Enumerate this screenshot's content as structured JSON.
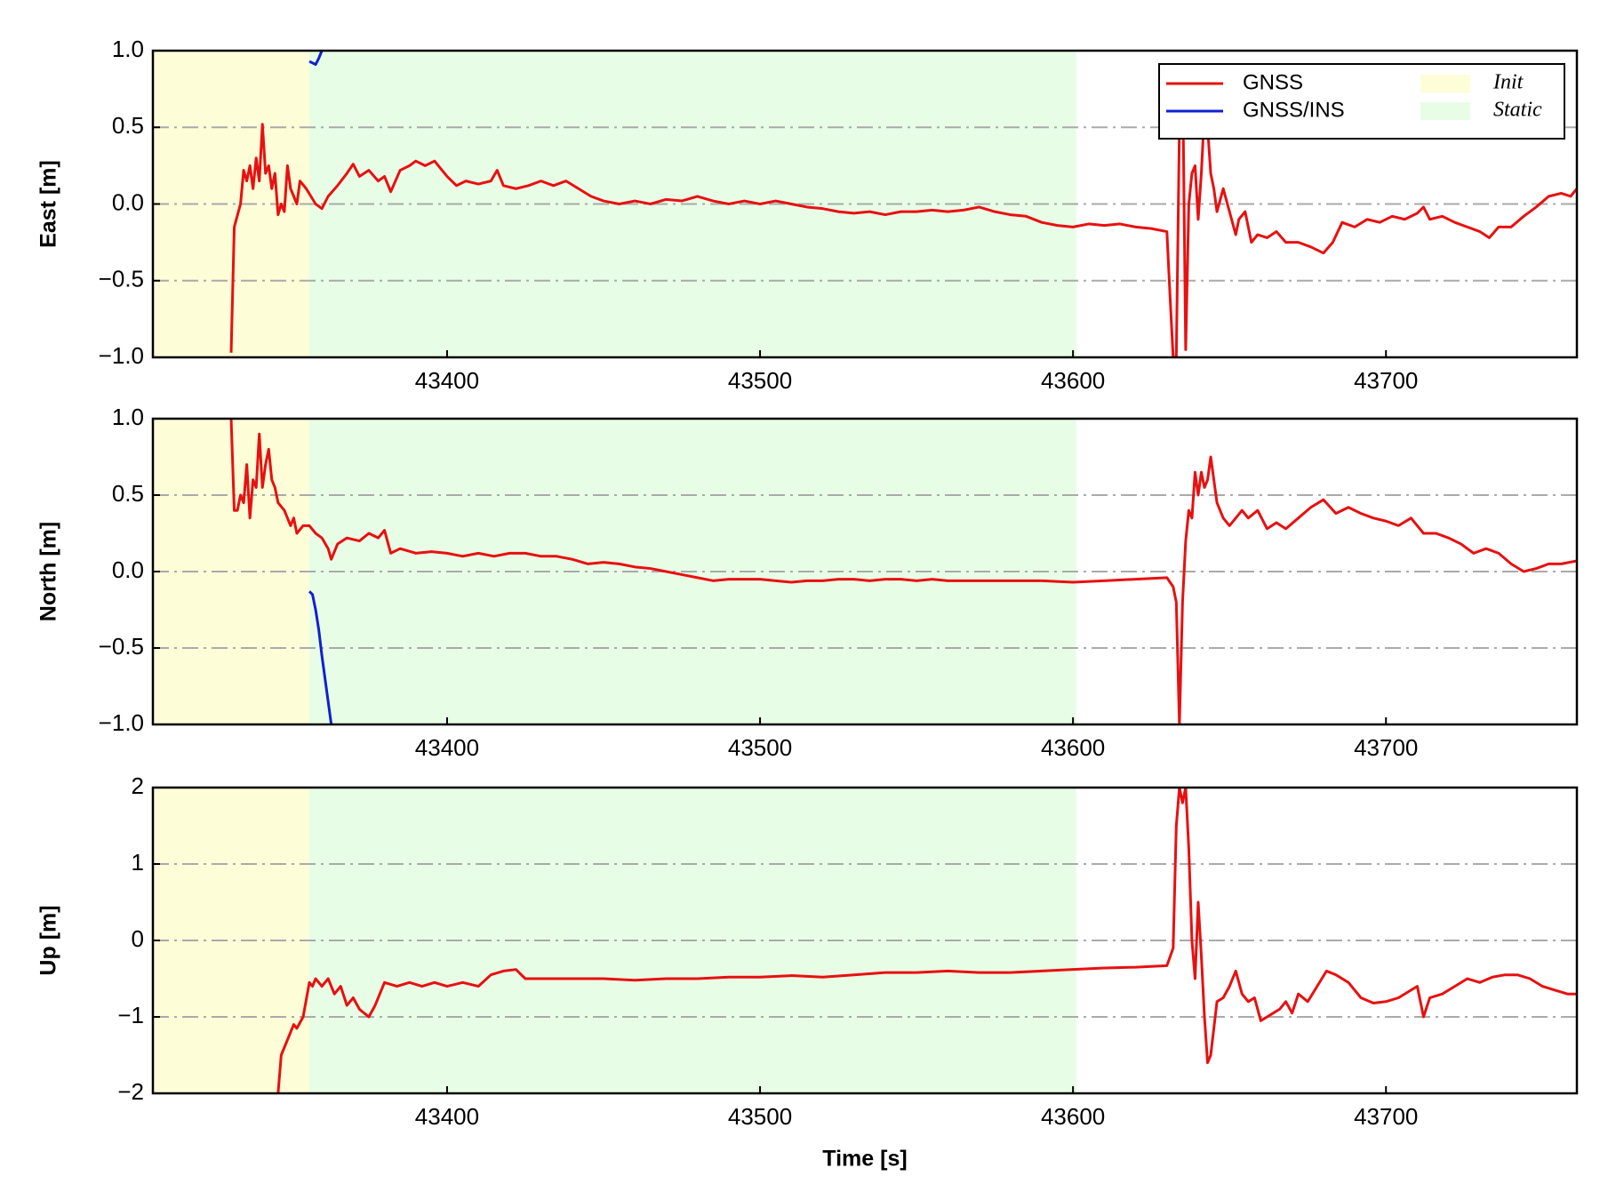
{
  "chart_data": [
    {
      "type": "line",
      "ylabel": "East [m]",
      "xlim": [
        43306,
        43761
      ],
      "xticks": [
        43400,
        43500,
        43600,
        43700
      ],
      "ylim": [
        -1,
        1
      ],
      "yticks": [
        {
          "value": -1,
          "label": "−1.0"
        },
        {
          "value": -0.5,
          "label": "−0.5"
        },
        {
          "value": 0,
          "label": "0.0"
        },
        0.5,
        {
          "value": 1,
          "label": "1.0"
        }
      ],
      "grid": true,
      "legend": "upper right",
      "spans": [
        {
          "name": "Init",
          "color": "#fdfdd8",
          "range": [
            43306,
            43356
          ]
        },
        {
          "name": "Static",
          "color": "#e8fde6",
          "range": [
            43356,
            43601
          ]
        }
      ],
      "series": [
        {
          "name": "GNSS",
          "color": "#e81010",
          "x": [
            43331,
            43332,
            43334,
            43335,
            43336,
            43337,
            43338,
            43339,
            43340,
            43341,
            43342,
            43343,
            43344,
            43345,
            43346,
            43347,
            43348,
            43349,
            43350,
            43352,
            43353,
            43355,
            43358,
            43360,
            43362,
            43365,
            43368,
            43370,
            43372,
            43375,
            43378,
            43380,
            43382,
            43385,
            43388,
            43390,
            43393,
            43396,
            43400,
            43403,
            43406,
            43410,
            43414,
            43416,
            43418,
            43422,
            43426,
            43430,
            43434,
            43438,
            43442,
            43446,
            43450,
            43455,
            43460,
            43465,
            43470,
            43475,
            43480,
            43485,
            43490,
            43495,
            43500,
            43505,
            43510,
            43515,
            43520,
            43525,
            43530,
            43535,
            43540,
            43545,
            43550,
            43555,
            43560,
            43565,
            43570,
            43575,
            43580,
            43585,
            43590,
            43595,
            43600,
            43605,
            43610,
            43615,
            43620,
            43625,
            43630,
            43631,
            43632,
            43633,
            43634,
            43635,
            43636,
            43637,
            43638,
            43639,
            43640,
            43641,
            43642,
            43643,
            43644,
            43645,
            43646,
            43648,
            43650,
            43652,
            43653,
            43655,
            43657,
            43659,
            43662,
            43665,
            43668,
            43672,
            43676,
            43680,
            43683,
            43686,
            43690,
            43694,
            43698,
            43702,
            43706,
            43710,
            43712,
            43714,
            43718,
            43722,
            43726,
            43730,
            43733,
            43736,
            43740,
            43744,
            43748,
            43752,
            43756,
            43759,
            43761
          ],
          "values": [
            -0.97,
            -0.15,
            0.0,
            0.22,
            0.15,
            0.25,
            0.1,
            0.3,
            0.15,
            0.52,
            0.2,
            0.25,
            0.1,
            0.2,
            -0.07,
            0.0,
            -0.05,
            0.25,
            0.1,
            0.0,
            0.15,
            0.1,
            0.0,
            -0.03,
            0.05,
            0.12,
            0.2,
            0.26,
            0.18,
            0.22,
            0.15,
            0.18,
            0.08,
            0.22,
            0.25,
            0.28,
            0.25,
            0.28,
            0.18,
            0.12,
            0.15,
            0.13,
            0.15,
            0.22,
            0.12,
            0.1,
            0.12,
            0.15,
            0.12,
            0.15,
            0.1,
            0.05,
            0.02,
            0.0,
            0.02,
            0.0,
            0.03,
            0.02,
            0.05,
            0.02,
            0.0,
            0.02,
            0.0,
            0.02,
            0.0,
            -0.02,
            -0.03,
            -0.05,
            -0.06,
            -0.05,
            -0.07,
            -0.05,
            -0.05,
            -0.04,
            -0.05,
            -0.04,
            -0.02,
            -0.05,
            -0.07,
            -0.08,
            -0.12,
            -0.14,
            -0.15,
            -0.13,
            -0.14,
            -0.13,
            -0.15,
            -0.16,
            -0.18,
            -0.6,
            -1.0,
            -1.0,
            0.5,
            0.9,
            -0.95,
            0.0,
            0.2,
            0.25,
            -0.1,
            0.2,
            0.6,
            0.5,
            0.2,
            0.1,
            -0.05,
            0.1,
            -0.05,
            -0.2,
            -0.1,
            -0.05,
            -0.25,
            -0.2,
            -0.22,
            -0.18,
            -0.25,
            -0.25,
            -0.28,
            -0.32,
            -0.25,
            -0.12,
            -0.15,
            -0.1,
            -0.12,
            -0.08,
            -0.1,
            -0.06,
            -0.02,
            -0.1,
            -0.08,
            -0.12,
            -0.15,
            -0.18,
            -0.22,
            -0.15,
            -0.15,
            -0.08,
            -0.02,
            0.05,
            0.07,
            0.05,
            0.1
          ]
        },
        {
          "name": "GNSS/INS",
          "color": "#1020d0",
          "x": [
            43356,
            43357,
            43358,
            43359,
            43360
          ],
          "values": [
            0.93,
            0.92,
            0.91,
            0.95,
            1.0
          ]
        }
      ]
    },
    {
      "type": "line",
      "ylabel": "North [m]",
      "xlim": [
        43306,
        43761
      ],
      "xticks": [
        43400,
        43500,
        43600,
        43700
      ],
      "ylim": [
        -1,
        1
      ],
      "yticks": [
        {
          "value": -1,
          "label": "−1.0"
        },
        {
          "value": -0.5,
          "label": "−0.5"
        },
        {
          "value": 0,
          "label": "0.0"
        },
        0.5,
        {
          "value": 1,
          "label": "1.0"
        }
      ],
      "grid": true,
      "series": [
        {
          "color": "#e81010",
          "x": [
            43331,
            43332,
            43333,
            43334,
            43335,
            43336,
            43337,
            43338,
            43339,
            43340,
            43341,
            43342,
            43343,
            43344,
            43345,
            43346,
            43348,
            43350,
            43351,
            43352,
            43354,
            43356,
            43358,
            43360,
            43362,
            43363,
            43365,
            43368,
            43372,
            43375,
            43378,
            43380,
            43382,
            43385,
            43390,
            43395,
            43400,
            43405,
            43410,
            43415,
            43420,
            43425,
            43430,
            43435,
            43440,
            43445,
            43450,
            43455,
            43460,
            43465,
            43470,
            43475,
            43480,
            43485,
            43490,
            43495,
            43500,
            43505,
            43510,
            43515,
            43520,
            43525,
            43530,
            43535,
            43540,
            43545,
            43550,
            43555,
            43560,
            43570,
            43580,
            43590,
            43600,
            43610,
            43620,
            43630,
            43632,
            43633,
            43634,
            43635,
            43636,
            43637,
            43638,
            43639,
            43640,
            43641,
            43642,
            43643,
            43644,
            43645,
            43646,
            43648,
            43650,
            43654,
            43656,
            43659,
            43662,
            43665,
            43668,
            43672,
            43676,
            43680,
            43684,
            43688,
            43692,
            43696,
            43700,
            43704,
            43708,
            43712,
            43716,
            43720,
            43724,
            43728,
            43732,
            43736,
            43740,
            43744,
            43748,
            43752,
            43756,
            43761
          ],
          "values": [
            1.0,
            0.4,
            0.4,
            0.5,
            0.45,
            0.7,
            0.35,
            0.6,
            0.55,
            0.9,
            0.55,
            0.7,
            0.8,
            0.6,
            0.55,
            0.45,
            0.4,
            0.3,
            0.35,
            0.25,
            0.3,
            0.3,
            0.25,
            0.22,
            0.15,
            0.08,
            0.18,
            0.22,
            0.2,
            0.25,
            0.22,
            0.27,
            0.12,
            0.15,
            0.12,
            0.13,
            0.12,
            0.1,
            0.12,
            0.1,
            0.12,
            0.12,
            0.1,
            0.1,
            0.08,
            0.05,
            0.06,
            0.05,
            0.03,
            0.02,
            0.0,
            -0.02,
            -0.04,
            -0.06,
            -0.05,
            -0.05,
            -0.05,
            -0.06,
            -0.07,
            -0.06,
            -0.06,
            -0.05,
            -0.05,
            -0.06,
            -0.05,
            -0.05,
            -0.06,
            -0.05,
            -0.06,
            -0.06,
            -0.06,
            -0.06,
            -0.07,
            -0.06,
            -0.05,
            -0.04,
            -0.1,
            -0.2,
            -1.0,
            -0.2,
            0.2,
            0.4,
            0.35,
            0.65,
            0.5,
            0.65,
            0.55,
            0.6,
            0.75,
            0.6,
            0.45,
            0.35,
            0.3,
            0.4,
            0.35,
            0.4,
            0.28,
            0.32,
            0.28,
            0.35,
            0.42,
            0.47,
            0.38,
            0.42,
            0.38,
            0.35,
            0.33,
            0.3,
            0.35,
            0.25,
            0.25,
            0.22,
            0.18,
            0.12,
            0.15,
            0.12,
            0.05,
            0.0,
            0.02,
            0.05,
            0.05,
            0.07
          ]
        },
        {
          "color": "#1020d0",
          "x": [
            43356,
            43357,
            43358,
            43359,
            43360,
            43361,
            43362,
            43363
          ],
          "values": [
            -0.13,
            -0.15,
            -0.25,
            -0.38,
            -0.55,
            -0.7,
            -0.85,
            -1.0
          ]
        }
      ]
    },
    {
      "type": "line",
      "ylabel": "Up [m]",
      "xlabel": "Time [s]",
      "xlim": [
        43306,
        43761
      ],
      "xticks": [
        43400,
        43500,
        43600,
        43700
      ],
      "ylim": [
        -2,
        2
      ],
      "yticks": [
        {
          "value": -2,
          "label": "−2"
        },
        {
          "value": -1,
          "label": "−1"
        },
        0,
        1,
        2
      ],
      "grid": true,
      "series": [
        {
          "color": "#e81010",
          "x": [
            43346,
            43347,
            43349,
            43351,
            43352,
            43354,
            43356,
            43357,
            43358,
            43360,
            43362,
            43364,
            43366,
            43368,
            43370,
            43372,
            43375,
            43377,
            43380,
            43384,
            43388,
            43392,
            43396,
            43400,
            43405,
            43410,
            43414,
            43418,
            43422,
            43425,
            43430,
            43440,
            43450,
            43460,
            43470,
            43480,
            43490,
            43500,
            43510,
            43520,
            43530,
            43540,
            43550,
            43560,
            43570,
            43580,
            43590,
            43600,
            43610,
            43620,
            43630,
            43632,
            43633,
            43634,
            43635,
            43636,
            43637,
            43638,
            43639,
            43640,
            43641,
            43642,
            43643,
            43644,
            43646,
            43648,
            43650,
            43652,
            43654,
            43656,
            43658,
            43660,
            43662,
            43664,
            43666,
            43668,
            43670,
            43672,
            43675,
            43678,
            43681,
            43684,
            43688,
            43692,
            43696,
            43700,
            43704,
            43708,
            43710,
            43712,
            43714,
            43718,
            43722,
            43726,
            43730,
            43734,
            43738,
            43742,
            43746,
            43750,
            43754,
            43758,
            43761
          ],
          "values": [
            -2.0,
            -1.5,
            -1.3,
            -1.1,
            -1.15,
            -1.0,
            -0.55,
            -0.6,
            -0.5,
            -0.6,
            -0.5,
            -0.7,
            -0.6,
            -0.85,
            -0.75,
            -0.9,
            -1.0,
            -0.85,
            -0.55,
            -0.6,
            -0.55,
            -0.6,
            -0.55,
            -0.6,
            -0.55,
            -0.6,
            -0.45,
            -0.4,
            -0.38,
            -0.5,
            -0.5,
            -0.5,
            -0.5,
            -0.52,
            -0.5,
            -0.5,
            -0.48,
            -0.48,
            -0.46,
            -0.48,
            -0.45,
            -0.42,
            -0.42,
            -0.4,
            -0.42,
            -0.42,
            -0.4,
            -0.38,
            -0.36,
            -0.35,
            -0.33,
            -0.1,
            1.5,
            2.0,
            1.8,
            2.0,
            1.2,
            0.0,
            -0.5,
            0.5,
            -0.2,
            -1.0,
            -1.6,
            -1.5,
            -0.8,
            -0.75,
            -0.6,
            -0.4,
            -0.7,
            -0.8,
            -0.75,
            -1.05,
            -1.0,
            -0.95,
            -0.9,
            -0.8,
            -0.95,
            -0.7,
            -0.8,
            -0.6,
            -0.4,
            -0.45,
            -0.55,
            -0.75,
            -0.82,
            -0.8,
            -0.75,
            -0.65,
            -0.6,
            -1.0,
            -0.75,
            -0.7,
            -0.6,
            -0.5,
            -0.55,
            -0.48,
            -0.45,
            -0.45,
            -0.5,
            -0.6,
            -0.65,
            -0.7,
            -0.7
          ]
        }
      ]
    }
  ]
}
